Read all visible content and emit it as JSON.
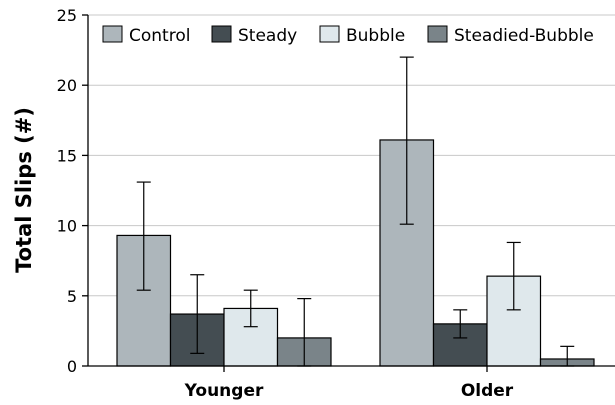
{
  "chart_data": {
    "type": "bar",
    "title": "",
    "xlabel": "",
    "ylabel": "Total Slips (#)",
    "ylim": [
      0,
      25
    ],
    "yticks": [
      0,
      5,
      10,
      15,
      20,
      25
    ],
    "grid": "horizontal",
    "legend_position": "top",
    "categories": [
      "Younger",
      "Older"
    ],
    "series": [
      {
        "name": "Control",
        "color": "#adb6bb",
        "values": [
          9.3,
          16.1
        ],
        "error_low": [
          5.4,
          10.1
        ],
        "error_high": [
          13.1,
          22.0
        ]
      },
      {
        "name": "Steady",
        "color": "#444d52",
        "values": [
          3.7,
          3.0
        ],
        "error_low": [
          0.9,
          2.0
        ],
        "error_high": [
          6.5,
          4.0
        ]
      },
      {
        "name": "Bubble",
        "color": "#dfe8ec",
        "values": [
          4.1,
          6.4
        ],
        "error_low": [
          2.8,
          4.0
        ],
        "error_high": [
          5.4,
          8.8
        ]
      },
      {
        "name": "Steadied-Bubble",
        "color": "#7a8489",
        "values": [
          2.0,
          0.5
        ],
        "error_low": [
          0.0,
          0.0
        ],
        "error_high": [
          4.8,
          1.4
        ]
      }
    ]
  }
}
